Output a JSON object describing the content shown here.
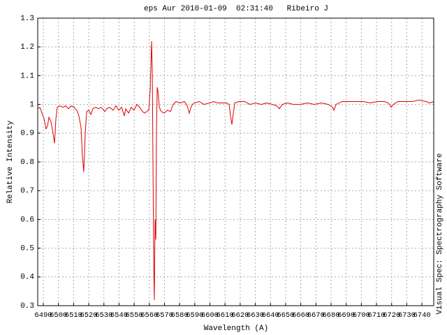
{
  "chart_data": {
    "type": "line",
    "title": "eps Aur 2010-01-09  02:31:40   Ribeiro J",
    "xlabel": "Wavelength (A)",
    "ylabel": "Relative Intensity",
    "side_text": "Visual Spec: Spectrography Software",
    "grid": true,
    "xlim": [
      6486.3,
      6747.8
    ],
    "ylim": [
      0.3,
      1.3
    ],
    "xticks": [
      6490,
      6500,
      6510,
      6520,
      6530,
      6540,
      6550,
      6560,
      6570,
      6580,
      6590,
      6600,
      6610,
      6620,
      6630,
      6640,
      6650,
      6660,
      6670,
      6680,
      6690,
      6700,
      6710,
      6720,
      6730,
      6740
    ],
    "yticks": [
      0.3,
      0.4,
      0.5,
      0.6,
      0.7,
      0.8,
      0.9,
      1,
      1.1,
      1.2,
      1.3
    ],
    "x": [
      6486.3,
      6487.7,
      6489.1,
      6490.5,
      6491.8,
      6492.8,
      6493.7,
      6495.1,
      6496.4,
      6497.4,
      6498.3,
      6499.2,
      6501.1,
      6502.9,
      6504.8,
      6506.6,
      6508.4,
      6510.3,
      6512.1,
      6513.5,
      6514.9,
      6515.8,
      6516.7,
      6517.7,
      6518.6,
      6520.0,
      6521.4,
      6522.7,
      6524.6,
      6526.4,
      6528.3,
      6530.6,
      6531.9,
      6533.8,
      6536.1,
      6538.0,
      6539.8,
      6541.7,
      6543.5,
      6544.4,
      6546.3,
      6548.1,
      6549.9,
      6551.8,
      6553.6,
      6555.5,
      6556.9,
      6558.3,
      6559.6,
      6560.6,
      6561.5,
      6562.0,
      6562.4,
      6562.9,
      6563.3,
      6563.8,
      6564.3,
      6564.7,
      6565.2,
      6565.6,
      6566.6,
      6567.9,
      6569.8,
      6572.1,
      6573.9,
      6575.8,
      6577.6,
      6580.4,
      6583.2,
      6585.0,
      6586.4,
      6587.8,
      6589.6,
      6592.9,
      6596.1,
      6599.8,
      6602.5,
      6605.3,
      6608.1,
      6610.9,
      6612.7,
      6613.6,
      6614.5,
      6615.5,
      6616.4,
      6619.2,
      6622.8,
      6626.5,
      6630.2,
      6633.9,
      6637.6,
      6641.3,
      6644.1,
      6645.9,
      6647.8,
      6651.4,
      6655.1,
      6659.8,
      6664.4,
      6669.0,
      6673.6,
      6678.2,
      6681.0,
      6681.9,
      6683.3,
      6687.4,
      6692.0,
      6696.6,
      6701.3,
      6705.9,
      6710.5,
      6715.1,
      6717.9,
      6719.7,
      6721.1,
      6724.3,
      6728.9,
      6733.6,
      6738.2,
      6742.8,
      6745.1,
      6747.8
    ],
    "series": [
      {
        "color": "#dd0000",
        "values": [
          0.985,
          0.99,
          0.97,
          0.95,
          0.915,
          0.925,
          0.955,
          0.94,
          0.9,
          0.865,
          0.95,
          0.99,
          0.995,
          0.99,
          0.995,
          0.985,
          0.995,
          0.99,
          0.98,
          0.96,
          0.92,
          0.82,
          0.765,
          0.9,
          0.975,
          0.98,
          0.965,
          0.985,
          0.99,
          0.985,
          0.99,
          0.975,
          0.985,
          0.99,
          0.98,
          0.995,
          0.98,
          0.99,
          0.96,
          0.985,
          0.97,
          0.99,
          0.98,
          1.0,
          0.99,
          0.975,
          0.97,
          0.975,
          0.98,
          1.05,
          1.22,
          1.1,
          0.8,
          0.45,
          0.32,
          0.6,
          0.53,
          0.9,
          1.06,
          1.05,
          0.99,
          0.975,
          0.97,
          0.98,
          0.975,
          1.0,
          1.01,
          1.005,
          1.01,
          0.995,
          0.97,
          0.995,
          1.005,
          1.01,
          1.0,
          1.005,
          1.01,
          1.005,
          1.005,
          1.005,
          1.0,
          0.96,
          0.93,
          0.97,
          1.005,
          1.01,
          1.01,
          1.0,
          1.005,
          1.0,
          1.005,
          1.0,
          0.995,
          0.985,
          1.0,
          1.005,
          1.0,
          1.0,
          1.005,
          1.0,
          1.005,
          1.0,
          0.99,
          0.98,
          1.0,
          1.01,
          1.01,
          1.01,
          1.01,
          1.005,
          1.01,
          1.01,
          1.005,
          0.99,
          1.0,
          1.01,
          1.01,
          1.01,
          1.015,
          1.01,
          1.005,
          1.01
        ]
      }
    ]
  }
}
